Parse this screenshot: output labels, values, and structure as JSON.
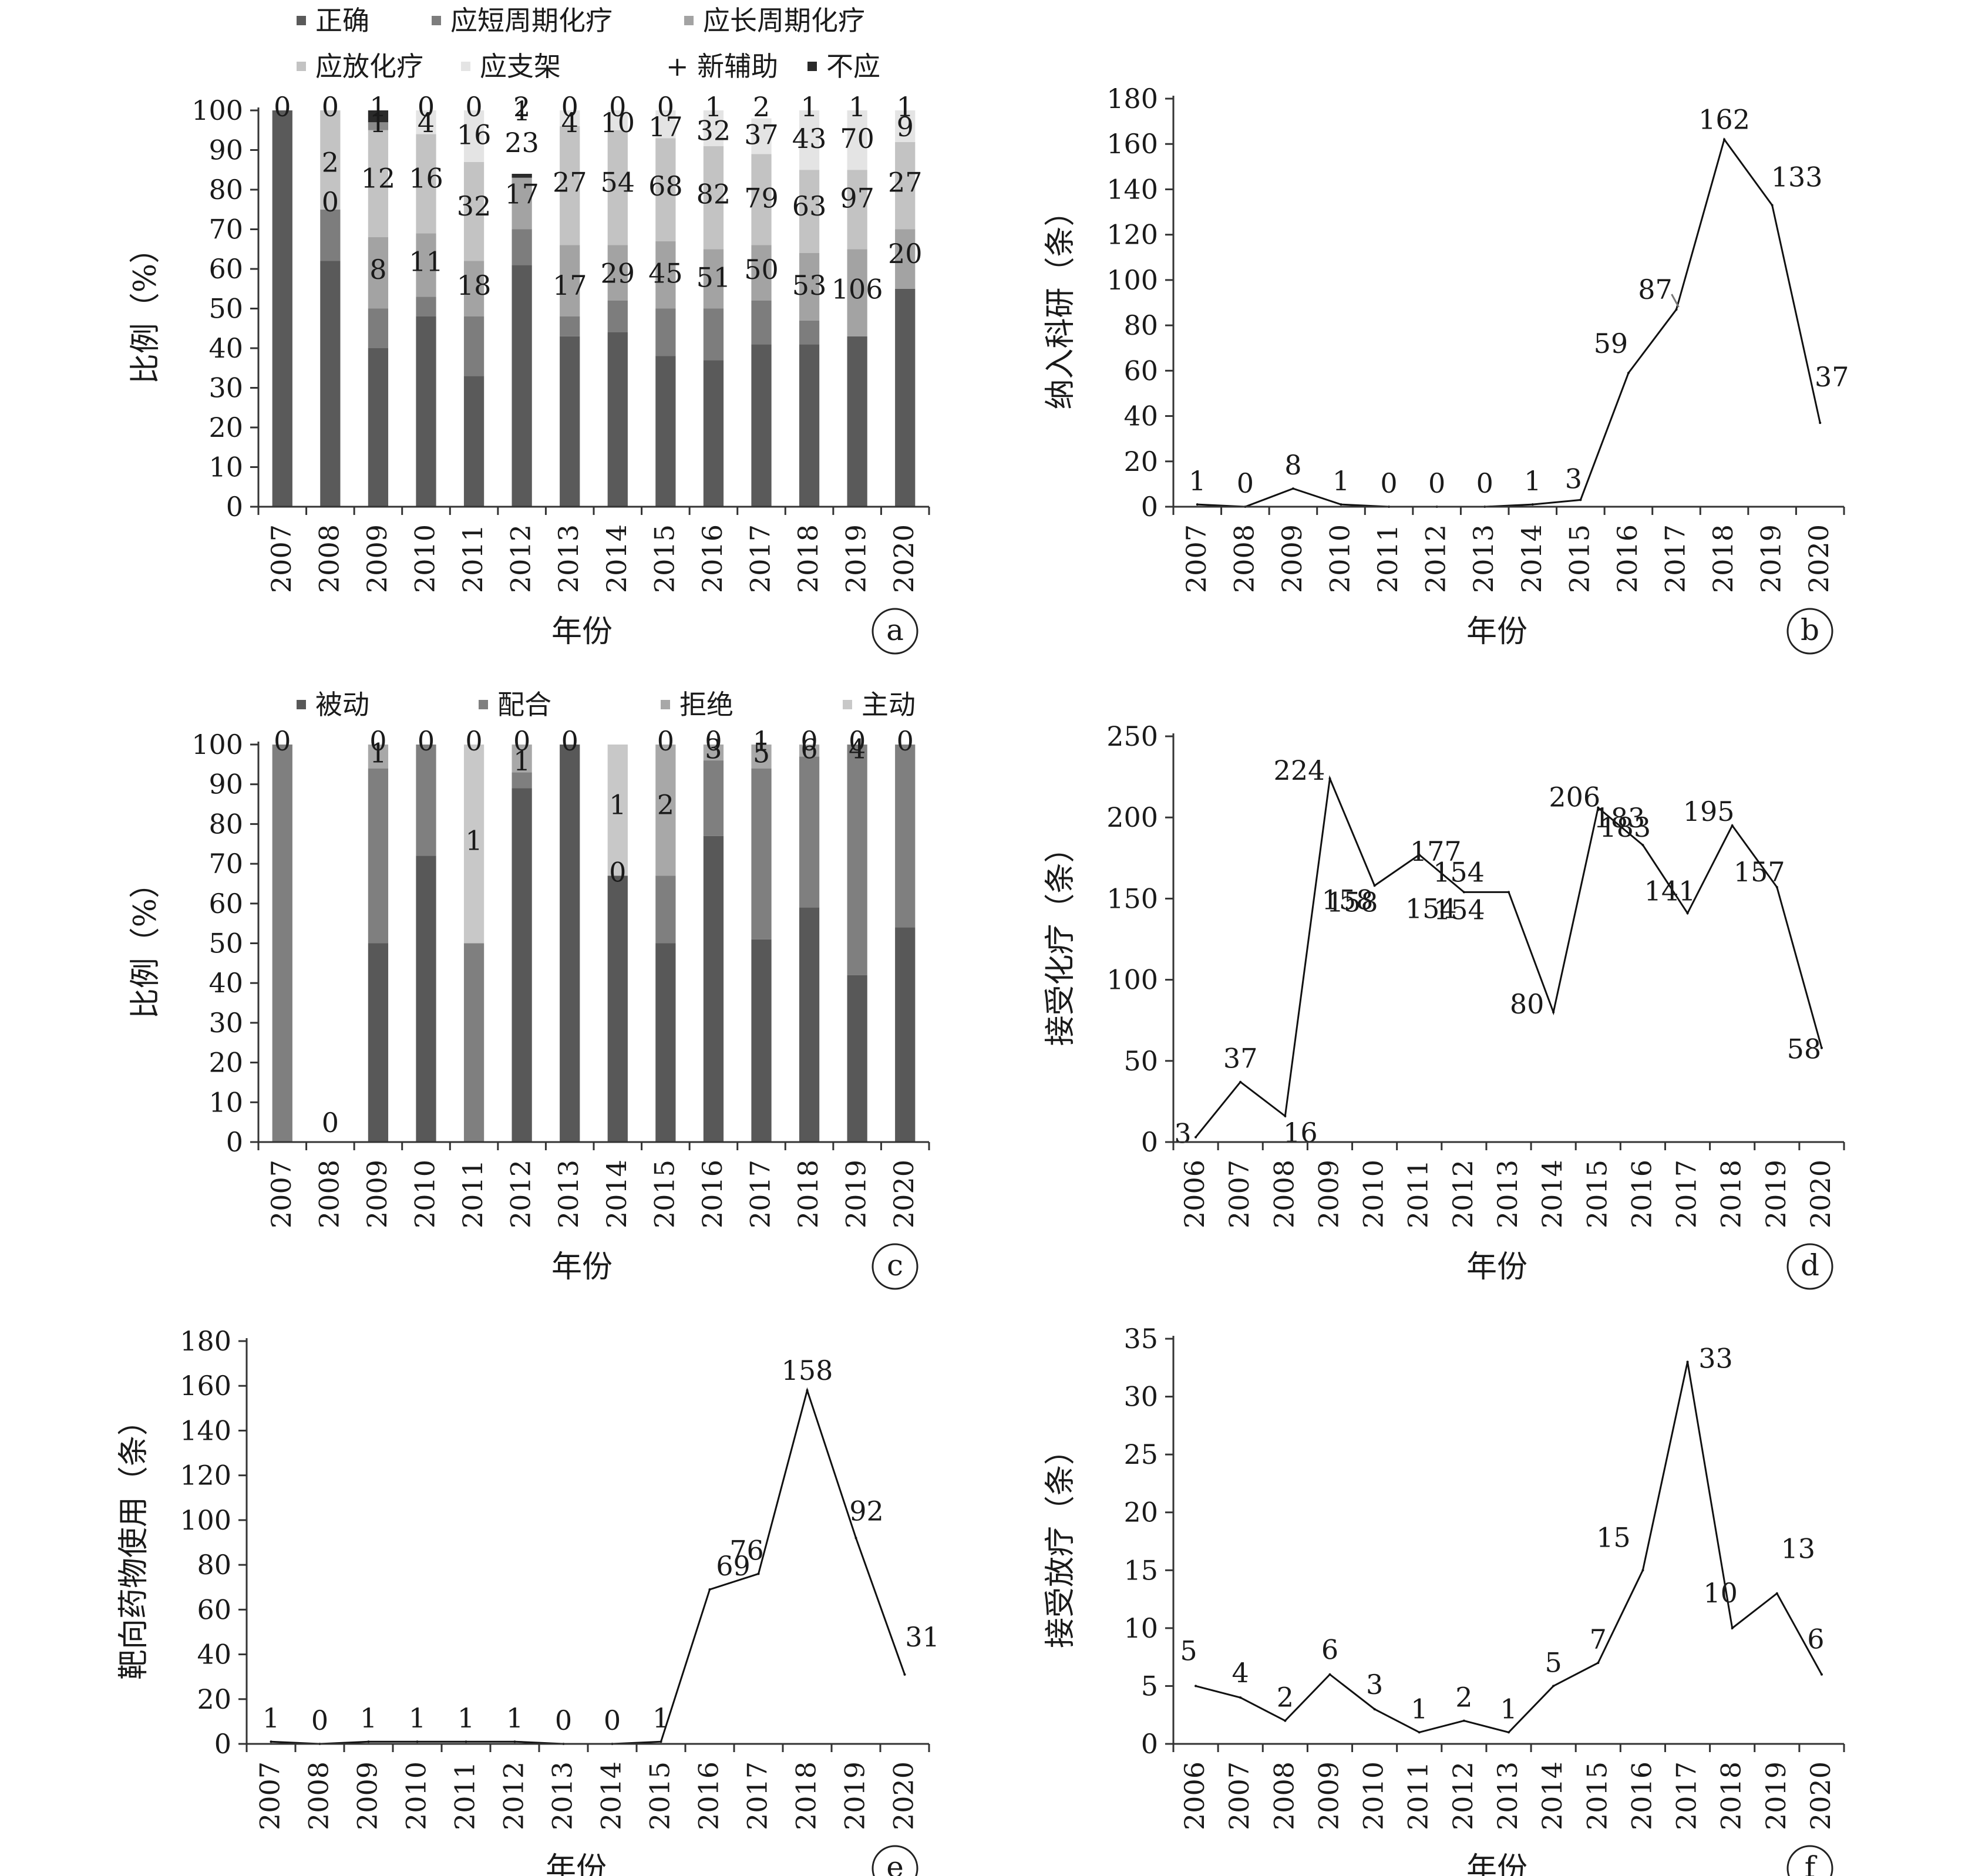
{
  "figure": {
    "panels": [
      "a",
      "b",
      "c",
      "d",
      "e",
      "f"
    ]
  },
  "chart_data": [
    {
      "id": "a",
      "type": "bar",
      "stacked": true,
      "categories": [
        "2007",
        "2008",
        "2009",
        "2010",
        "2011",
        "2012",
        "2013",
        "2014",
        "2015",
        "2016",
        "2017",
        "2018",
        "2019",
        "2020"
      ],
      "xlabel": "年份",
      "ylabel": "比例（%）",
      "ylim": [
        0,
        100
      ],
      "yticks": [
        0,
        10,
        20,
        30,
        40,
        50,
        60,
        70,
        80,
        90,
        100
      ],
      "legend": [
        "正确",
        "应短周期化疗",
        "应长周期化疗",
        "应放化疗",
        "应支架",
        "+ 新辅助",
        "不应"
      ],
      "legend_position": "top",
      "colors": [
        "#5a5a5a",
        "#7d7d7d",
        "#a3a3a3",
        "#c3c3c3",
        "#e4e4e4",
        "#8a8a8a",
        "#2a2a2a"
      ],
      "series_percent": [
        {
          "name": "正确",
          "values": [
            100,
            62,
            40,
            48,
            33,
            61,
            43,
            44,
            38,
            37,
            41,
            41,
            43,
            55
          ]
        },
        {
          "name": "应短周期化疗",
          "values": [
            0,
            13,
            10,
            5,
            15,
            9,
            5,
            8,
            12,
            13,
            11,
            6,
            0,
            0
          ]
        },
        {
          "name": "应长周期化疗",
          "values": [
            0,
            0,
            18,
            16,
            14,
            13,
            18,
            14,
            17,
            15,
            14,
            17,
            22,
            15
          ]
        },
        {
          "name": "应放化疗",
          "values": [
            0,
            25,
            27,
            25,
            25,
            0,
            30,
            29,
            26,
            26,
            23,
            21,
            20,
            22
          ]
        },
        {
          "name": "应支架",
          "values": [
            0,
            0,
            0,
            6,
            13,
            0,
            4,
            5,
            7,
            9,
            9,
            15,
            15,
            8
          ]
        },
        {
          "name": "+ 新辅助",
          "values": [
            0,
            0,
            2,
            0,
            0,
            0,
            0,
            0,
            0,
            0,
            0,
            0,
            0,
            0
          ]
        },
        {
          "name": "不应",
          "values": [
            0,
            0,
            3,
            0,
            0,
            1,
            0,
            0,
            0,
            0,
            0,
            0,
            0,
            0
          ]
        }
      ],
      "data_labels": [
        {
          "cat": "2007",
          "y": 100,
          "text": "0"
        },
        {
          "cat": "2008",
          "y": 100,
          "text": "0"
        },
        {
          "cat": "2009",
          "y": 100,
          "text": "1"
        },
        {
          "cat": "2010",
          "y": 100,
          "text": "0"
        },
        {
          "cat": "2011",
          "y": 100,
          "text": "0"
        },
        {
          "cat": "2012",
          "y": 100,
          "text": "2"
        },
        {
          "cat": "2013",
          "y": 100,
          "text": "0"
        },
        {
          "cat": "2014",
          "y": 100,
          "text": "0"
        },
        {
          "cat": "2015",
          "y": 100,
          "text": "0"
        },
        {
          "cat": "2016",
          "y": 100,
          "text": "1"
        },
        {
          "cat": "2017",
          "y": 100,
          "text": "2"
        },
        {
          "cat": "2018",
          "y": 100,
          "text": "1"
        },
        {
          "cat": "2019",
          "y": 100,
          "text": "1"
        },
        {
          "cat": "2020",
          "y": 100,
          "text": "1"
        },
        {
          "cat": "2009",
          "y": 96,
          "text": "1"
        },
        {
          "cat": "2010",
          "y": 96,
          "text": "4"
        },
        {
          "cat": "2012",
          "y": 99,
          "text": "1"
        },
        {
          "cat": "2013",
          "y": 96,
          "text": "4"
        },
        {
          "cat": "2014",
          "y": 96,
          "text": "10"
        },
        {
          "cat": "2015",
          "y": 95,
          "text": "17"
        },
        {
          "cat": "2016",
          "y": 94,
          "text": "32"
        },
        {
          "cat": "2017",
          "y": 93,
          "text": "37"
        },
        {
          "cat": "2018",
          "y": 92,
          "text": "43"
        },
        {
          "cat": "2019",
          "y": 92,
          "text": "70"
        },
        {
          "cat": "2020",
          "y": 95,
          "text": "9"
        },
        {
          "cat": "2011",
          "y": 93,
          "text": "16"
        },
        {
          "cat": "2008",
          "y": 86,
          "text": "2"
        },
        {
          "cat": "2009",
          "y": 82,
          "text": "12"
        },
        {
          "cat": "2010",
          "y": 82,
          "text": "16"
        },
        {
          "cat": "2011",
          "y": 75,
          "text": "32"
        },
        {
          "cat": "2012",
          "y": 91,
          "text": "23"
        },
        {
          "cat": "2013",
          "y": 81,
          "text": "27"
        },
        {
          "cat": "2014",
          "y": 81,
          "text": "54"
        },
        {
          "cat": "2015",
          "y": 80,
          "text": "68"
        },
        {
          "cat": "2016",
          "y": 78,
          "text": "82"
        },
        {
          "cat": "2017",
          "y": 77,
          "text": "79"
        },
        {
          "cat": "2018",
          "y": 75,
          "text": "63"
        },
        {
          "cat": "2019",
          "y": 77,
          "text": "97"
        },
        {
          "cat": "2020",
          "y": 81,
          "text": "27"
        },
        {
          "cat": "2012",
          "y": 78,
          "text": "17"
        },
        {
          "cat": "2008",
          "y": 76,
          "text": "0"
        },
        {
          "cat": "2009",
          "y": 59,
          "text": "8"
        },
        {
          "cat": "2010",
          "y": 61,
          "text": "11"
        },
        {
          "cat": "2011",
          "y": 55,
          "text": "18"
        },
        {
          "cat": "2013",
          "y": 55,
          "text": "17"
        },
        {
          "cat": "2014",
          "y": 58,
          "text": "29"
        },
        {
          "cat": "2015",
          "y": 58,
          "text": "45"
        },
        {
          "cat": "2016",
          "y": 57,
          "text": "51"
        },
        {
          "cat": "2017",
          "y": 59,
          "text": "50"
        },
        {
          "cat": "2018",
          "y": 55,
          "text": "53"
        },
        {
          "cat": "2019",
          "y": 54,
          "text": "106"
        },
        {
          "cat": "2020",
          "y": 63,
          "text": "20"
        }
      ],
      "panel_label": "a"
    },
    {
      "id": "b",
      "type": "line",
      "x": [
        "2007",
        "2008",
        "2009",
        "2010",
        "2011",
        "2012",
        "2013",
        "2014",
        "2015",
        "2016",
        "2017",
        "2018",
        "2019",
        "2020"
      ],
      "values": [
        1,
        0,
        8,
        1,
        0,
        0,
        0,
        1,
        3,
        59,
        87,
        162,
        133,
        37
      ],
      "xlabel": "年份",
      "ylabel": "纳入科研（条）",
      "ylim": [
        0,
        180
      ],
      "yticks": [
        0,
        20,
        40,
        60,
        80,
        100,
        120,
        140,
        160,
        180
      ],
      "point_labels": [
        "1",
        "0",
        "8",
        "1",
        "0",
        "0",
        "0",
        "1",
        "3",
        "59",
        "87",
        "162",
        "133",
        "37"
      ],
      "panel_label": "b"
    },
    {
      "id": "c",
      "type": "bar",
      "stacked": true,
      "categories": [
        "2007",
        "2008",
        "2009",
        "2010",
        "2011",
        "2012",
        "2013",
        "2014",
        "2015",
        "2016",
        "2017",
        "2018",
        "2019",
        "2020"
      ],
      "xlabel": "年份",
      "ylabel": "比例（%）",
      "ylim": [
        0,
        100
      ],
      "yticks": [
        0,
        10,
        20,
        30,
        40,
        50,
        60,
        70,
        80,
        90,
        100
      ],
      "legend": [
        "被动",
        "配合",
        "拒绝",
        "主动"
      ],
      "legend_position": "top",
      "colors": [
        "#585858",
        "#7f7f7f",
        "#a8a8a8",
        "#c8c8c8"
      ],
      "series_percent": [
        {
          "name": "被动",
          "values": [
            0,
            0,
            50,
            72,
            0,
            89,
            100,
            67,
            50,
            77,
            51,
            59,
            42,
            54
          ]
        },
        {
          "name": "配合",
          "values": [
            100,
            0,
            44,
            28,
            50,
            4,
            0,
            0,
            17,
            19,
            43,
            38,
            58,
            46
          ]
        },
        {
          "name": "拒绝",
          "values": [
            0,
            0,
            6,
            0,
            0,
            7,
            0,
            0,
            33,
            4,
            6,
            3,
            0,
            0
          ]
        },
        {
          "name": "主动",
          "values": [
            0,
            0,
            0,
            0,
            50,
            0,
            0,
            33,
            0,
            0,
            0,
            0,
            0,
            0
          ]
        }
      ],
      "data_labels": [
        {
          "cat": "2007",
          "y": 100,
          "text": "0"
        },
        {
          "cat": "2009",
          "y": 100,
          "text": "0"
        },
        {
          "cat": "2010",
          "y": 100,
          "text": "0"
        },
        {
          "cat": "2011",
          "y": 100,
          "text": "0"
        },
        {
          "cat": "2012",
          "y": 100,
          "text": "0"
        },
        {
          "cat": "2013",
          "y": 100,
          "text": "0"
        },
        {
          "cat": "2015",
          "y": 100,
          "text": "0"
        },
        {
          "cat": "2016",
          "y": 100,
          "text": "0"
        },
        {
          "cat": "2017",
          "y": 100,
          "text": "1"
        },
        {
          "cat": "2018",
          "y": 100,
          "text": "0"
        },
        {
          "cat": "2019",
          "y": 100,
          "text": "0"
        },
        {
          "cat": "2020",
          "y": 100,
          "text": "0"
        },
        {
          "cat": "2009",
          "y": 97,
          "text": "1"
        },
        {
          "cat": "2012",
          "y": 95,
          "text": "1"
        },
        {
          "cat": "2016",
          "y": 98,
          "text": "3"
        },
        {
          "cat": "2017",
          "y": 97,
          "text": "5"
        },
        {
          "cat": "2018",
          "y": 98,
          "text": "6"
        },
        {
          "cat": "2019",
          "y": 98,
          "text": "4"
        },
        {
          "cat": "2011",
          "y": 75,
          "text": "1"
        },
        {
          "cat": "2014",
          "y": 84,
          "text": "1"
        },
        {
          "cat": "2015",
          "y": 84,
          "text": "2"
        },
        {
          "cat": "2014",
          "y": 67,
          "text": "0"
        },
        {
          "cat": "2008",
          "y": 4,
          "text": "0"
        }
      ],
      "panel_label": "c"
    },
    {
      "id": "d",
      "type": "line",
      "x": [
        "2006",
        "2007",
        "2008",
        "2009",
        "2010",
        "2011",
        "2012",
        "2013",
        "2014",
        "2015",
        "2016",
        "2017",
        "2018",
        "2019",
        "2020"
      ],
      "series": [
        {
          "name": "",
          "values": [
            3,
            37,
            16,
            224,
            158,
            177,
            154,
            154,
            80,
            206,
            183,
            141,
            195,
            157,
            58
          ]
        }
      ],
      "xlabel": "年份",
      "ylabel": "接受化疗（条）",
      "ylim": [
        0,
        250
      ],
      "yticks": [
        0,
        50,
        100,
        150,
        200,
        250
      ],
      "point_labels": [
        "3",
        "37",
        "16",
        "224",
        "158",
        "177",
        "154",
        "154",
        "80",
        "206",
        "183",
        "141",
        "195",
        "157",
        "58"
      ],
      "annotation_labels": [
        {
          "x": "2009",
          "y": 158,
          "text": "158"
        },
        {
          "x": "2011",
          "y": 154,
          "text": "154"
        },
        {
          "x": "2015",
          "y": 183,
          "text": "183"
        }
      ],
      "panel_label": "d"
    },
    {
      "id": "e",
      "type": "line",
      "x": [
        "2007",
        "2008",
        "2009",
        "2010",
        "2011",
        "2012",
        "2013",
        "2014",
        "2015",
        "2016",
        "2017",
        "2018",
        "2019",
        "2020"
      ],
      "values": [
        1,
        0,
        1,
        1,
        1,
        1,
        0,
        0,
        1,
        69,
        76,
        158,
        92,
        31
      ],
      "xlabel": "年份",
      "ylabel": "靶向药物使用（条）",
      "ylim": [
        0,
        180
      ],
      "yticks": [
        0,
        20,
        40,
        60,
        80,
        100,
        120,
        140,
        160,
        180
      ],
      "point_labels": [
        "1",
        "0",
        "1",
        "1",
        "1",
        "1",
        "0",
        "0",
        "1",
        "69",
        "76",
        "158",
        "92",
        "31"
      ],
      "panel_label": "e"
    },
    {
      "id": "f",
      "type": "line",
      "x": [
        "2006",
        "2007",
        "2008",
        "2009",
        "2010",
        "2011",
        "2012",
        "2013",
        "2014",
        "2015",
        "2016",
        "2017",
        "2018",
        "2019",
        "2020"
      ],
      "values": [
        5,
        4,
        2,
        6,
        3,
        1,
        2,
        1,
        5,
        7,
        15,
        33,
        10,
        13,
        6
      ],
      "xlabel": "年份",
      "ylabel": "接受放疗（条）",
      "ylim": [
        0,
        35
      ],
      "yticks": [
        0,
        5,
        10,
        15,
        20,
        25,
        30,
        35
      ],
      "point_labels": [
        "5",
        "4",
        "2",
        "6",
        "3",
        "1",
        "2",
        "1",
        "5",
        "7",
        "15",
        "33",
        "10",
        "13",
        "6"
      ],
      "panel_label": "f"
    }
  ]
}
